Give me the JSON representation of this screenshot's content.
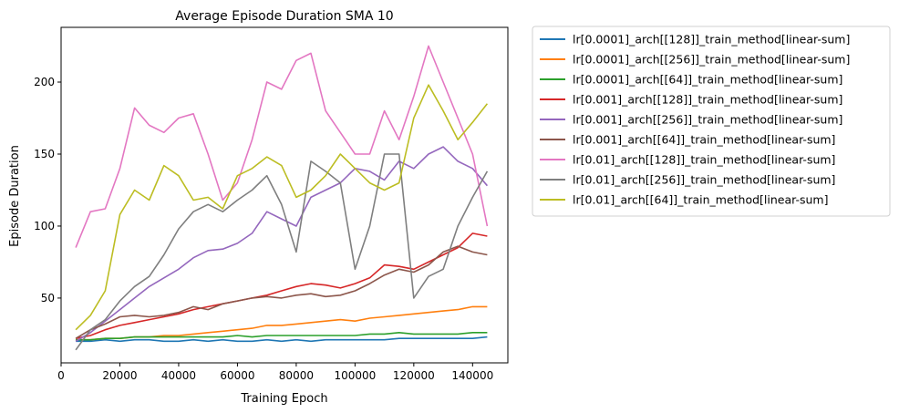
{
  "chart_data": {
    "type": "line",
    "title": "Average Episode Duration SMA 10",
    "xlabel": "Training Epoch",
    "ylabel": "Episode Duration",
    "xlim": [
      0,
      152000
    ],
    "ylim": [
      5,
      238
    ],
    "xticks": [
      0,
      20000,
      40000,
      60000,
      80000,
      100000,
      120000,
      140000
    ],
    "xtick_labels": [
      "0",
      "20000",
      "40000",
      "60000",
      "80000",
      "100000",
      "120000",
      "140000"
    ],
    "yticks": [
      50,
      100,
      150,
      200
    ],
    "ytick_labels": [
      "50",
      "100",
      "150",
      "200"
    ],
    "grid": false,
    "legend_position": "outside-right",
    "x": [
      5000,
      10000,
      15000,
      20000,
      25000,
      30000,
      35000,
      40000,
      45000,
      50000,
      55000,
      60000,
      65000,
      70000,
      75000,
      80000,
      85000,
      90000,
      95000,
      100000,
      105000,
      110000,
      115000,
      120000,
      125000,
      130000,
      135000,
      140000,
      145000
    ],
    "series": [
      {
        "name": "lr[0.0001]_arch[[128]]_train_method[linear-sum]",
        "color": "#1f77b4",
        "values": [
          20,
          20,
          21,
          20,
          21,
          21,
          20,
          20,
          21,
          20,
          21,
          20,
          20,
          21,
          20,
          21,
          20,
          21,
          21,
          21,
          21,
          21,
          22,
          22,
          22,
          22,
          22,
          22,
          23
        ]
      },
      {
        "name": "lr[0.0001]_arch[[256]]_train_method[linear-sum]",
        "color": "#ff7f0e",
        "values": [
          21,
          21,
          22,
          22,
          23,
          23,
          24,
          24,
          25,
          26,
          27,
          28,
          29,
          31,
          31,
          32,
          33,
          34,
          35,
          34,
          36,
          37,
          38,
          39,
          40,
          41,
          42,
          44,
          44
        ]
      },
      {
        "name": "lr[0.0001]_arch[[64]]_train_method[linear-sum]",
        "color": "#2ca02c",
        "values": [
          21,
          21,
          22,
          22,
          23,
          23,
          23,
          23,
          23,
          23,
          23,
          24,
          23,
          24,
          24,
          24,
          24,
          24,
          24,
          24,
          25,
          25,
          26,
          25,
          25,
          25,
          25,
          26,
          26
        ]
      },
      {
        "name": "lr[0.001]_arch[[128]]_train_method[linear-sum]",
        "color": "#d62728",
        "values": [
          22,
          24,
          28,
          31,
          33,
          35,
          37,
          39,
          42,
          44,
          46,
          48,
          50,
          52,
          55,
          58,
          60,
          59,
          57,
          60,
          64,
          73,
          72,
          70,
          75,
          80,
          85,
          95,
          93
        ]
      },
      {
        "name": "lr[0.001]_arch[[256]]_train_method[linear-sum]",
        "color": "#9467bd",
        "values": [
          20,
          26,
          34,
          42,
          50,
          58,
          64,
          70,
          78,
          83,
          84,
          88,
          95,
          110,
          105,
          100,
          120,
          125,
          130,
          140,
          138,
          132,
          145,
          140,
          150,
          155,
          145,
          140,
          128
        ]
      },
      {
        "name": "lr[0.001]_arch[[64]]_train_method[linear-sum]",
        "color": "#8c564b",
        "values": [
          22,
          28,
          32,
          37,
          38,
          37,
          38,
          40,
          44,
          42,
          46,
          48,
          50,
          51,
          50,
          52,
          53,
          51,
          52,
          55,
          60,
          66,
          70,
          68,
          73,
          82,
          86,
          82,
          80
        ]
      },
      {
        "name": "lr[0.01]_arch[[128]]_train_method[linear-sum]",
        "color": "#e377c2",
        "values": [
          85,
          110,
          112,
          140,
          182,
          170,
          165,
          175,
          178,
          150,
          118,
          130,
          160,
          200,
          195,
          215,
          220,
          180,
          165,
          150,
          150,
          180,
          160,
          190,
          225,
          200,
          175,
          150,
          100
        ]
      },
      {
        "name": "lr[0.01]_arch[[256]]_train_method[linear-sum]",
        "color": "#7f7f7f",
        "values": [
          14,
          28,
          35,
          48,
          58,
          65,
          80,
          98,
          110,
          115,
          110,
          118,
          125,
          135,
          115,
          82,
          145,
          138,
          130,
          70,
          100,
          150,
          150,
          50,
          65,
          70,
          100,
          120,
          138
        ]
      },
      {
        "name": "lr[0.01]_arch[[64]]_train_method[linear-sum]",
        "color": "#bcbd22",
        "values": [
          28,
          38,
          55,
          108,
          125,
          118,
          142,
          135,
          118,
          120,
          112,
          135,
          140,
          148,
          142,
          120,
          125,
          135,
          150,
          140,
          130,
          125,
          130,
          175,
          198,
          180,
          160,
          172,
          185
        ]
      }
    ]
  }
}
